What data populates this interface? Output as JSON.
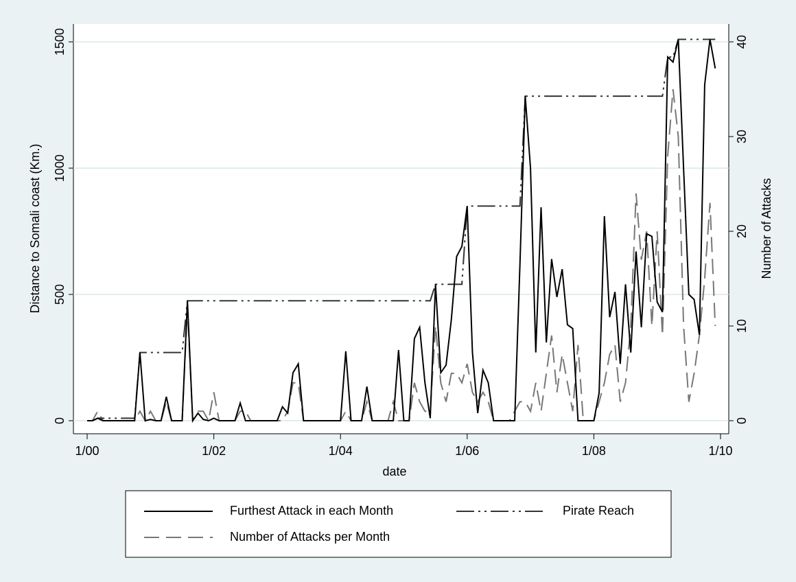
{
  "chart_data": {
    "type": "line",
    "xlabel": "date",
    "ylabel": "Distance to Somali coast (Km.)",
    "y2label": "Number of Attacks",
    "x": [
      "1/00",
      "2/00",
      "3/00",
      "4/00",
      "5/00",
      "6/00",
      "7/00",
      "8/00",
      "9/00",
      "10/00",
      "11/00",
      "12/00",
      "1/01",
      "2/01",
      "3/01",
      "4/01",
      "5/01",
      "6/01",
      "7/01",
      "8/01",
      "9/01",
      "10/01",
      "11/01",
      "12/01",
      "1/02",
      "2/02",
      "3/02",
      "4/02",
      "5/02",
      "6/02",
      "7/02",
      "8/02",
      "9/02",
      "10/02",
      "11/02",
      "12/02",
      "1/03",
      "2/03",
      "3/03",
      "4/03",
      "5/03",
      "6/03",
      "7/03",
      "8/03",
      "9/03",
      "10/03",
      "11/03",
      "12/03",
      "1/04",
      "2/04",
      "3/04",
      "4/04",
      "5/04",
      "6/04",
      "7/04",
      "8/04",
      "9/04",
      "10/04",
      "11/04",
      "12/04",
      "1/05",
      "2/05",
      "3/05",
      "4/05",
      "5/05",
      "6/05",
      "7/05",
      "8/05",
      "9/05",
      "10/05",
      "11/05",
      "12/05",
      "1/06",
      "2/06",
      "3/06",
      "4/06",
      "5/06",
      "6/06",
      "7/06",
      "8/06",
      "9/06",
      "10/06",
      "11/06",
      "12/06",
      "1/07",
      "2/07",
      "3/07",
      "4/07",
      "5/07",
      "6/07",
      "7/07",
      "8/07",
      "9/07",
      "10/07",
      "11/07",
      "12/07",
      "1/08",
      "2/08",
      "3/08",
      "4/08",
      "5/08",
      "6/08",
      "7/08",
      "8/08",
      "9/08",
      "10/08",
      "11/08",
      "12/08",
      "1/09",
      "2/09",
      "3/09",
      "4/09",
      "5/09",
      "6/09",
      "7/09",
      "8/09",
      "9/09",
      "10/09",
      "11/09",
      "12/09"
    ],
    "series": [
      {
        "name": "Furthest Attack in each Month",
        "color": "#000000",
        "linestyle": "solid",
        "values": [
          0,
          0,
          10,
          0,
          0,
          0,
          0,
          0,
          0,
          0,
          270,
          0,
          5,
          0,
          0,
          95,
          0,
          0,
          0,
          475,
          0,
          30,
          5,
          0,
          10,
          0,
          0,
          0,
          0,
          70,
          0,
          0,
          0,
          0,
          0,
          0,
          0,
          55,
          30,
          190,
          225,
          0,
          0,
          0,
          0,
          0,
          0,
          0,
          0,
          275,
          0,
          0,
          0,
          135,
          0,
          0,
          0,
          0,
          0,
          280,
          0,
          0,
          325,
          370,
          150,
          10,
          540,
          190,
          220,
          400,
          650,
          690,
          850,
          270,
          30,
          200,
          150,
          0,
          0,
          0,
          0,
          0,
          620,
          1285,
          1000,
          270,
          845,
          310,
          640,
          490,
          600,
          380,
          365,
          0,
          0,
          0,
          0,
          110,
          810,
          410,
          510,
          225,
          540,
          270,
          670,
          370,
          740,
          730,
          470,
          430,
          1440,
          1420,
          1510,
          1000,
          500,
          480,
          340,
          1330,
          1510,
          1395
        ]
      },
      {
        "name": "Pirate Reach",
        "color": "#333333",
        "linestyle": "dashdot",
        "values": [
          0,
          0,
          10,
          10,
          10,
          10,
          10,
          10,
          10,
          10,
          270,
          270,
          270,
          270,
          270,
          270,
          270,
          270,
          270,
          475,
          475,
          475,
          475,
          475,
          475,
          475,
          475,
          475,
          475,
          475,
          475,
          475,
          475,
          475,
          475,
          475,
          475,
          475,
          475,
          475,
          475,
          475,
          475,
          475,
          475,
          475,
          475,
          475,
          475,
          475,
          475,
          475,
          475,
          475,
          475,
          475,
          475,
          475,
          475,
          475,
          475,
          475,
          475,
          475,
          475,
          475,
          540,
          540,
          540,
          540,
          540,
          540,
          850,
          850,
          850,
          850,
          850,
          850,
          850,
          850,
          850,
          850,
          850,
          1285,
          1285,
          1285,
          1285,
          1285,
          1285,
          1285,
          1285,
          1285,
          1285,
          1285,
          1285,
          1285,
          1285,
          1285,
          1285,
          1285,
          1285,
          1285,
          1285,
          1285,
          1285,
          1285,
          1285,
          1285,
          1285,
          1285,
          1440,
          1440,
          1510,
          1510,
          1510,
          1510,
          1510,
          1510,
          1510,
          1510
        ]
      },
      {
        "name": "Number of Attacks per Month",
        "color": "#777777",
        "linestyle": "dashed",
        "axis": "y2",
        "values": [
          0,
          0,
          1,
          0,
          0,
          0,
          0,
          0,
          0,
          0,
          1,
          0,
          1,
          0,
          0,
          2,
          0,
          0,
          0,
          12,
          0,
          1,
          1,
          0,
          3,
          0,
          0,
          0,
          0,
          1,
          1,
          0,
          0,
          0,
          0,
          0,
          0,
          0,
          1,
          4,
          4,
          0,
          0,
          0,
          0,
          0,
          0,
          0,
          0,
          1,
          0,
          0,
          0,
          2,
          0,
          0,
          0,
          0,
          2,
          0,
          0,
          0,
          4,
          2,
          1,
          1,
          10,
          4,
          2,
          5,
          5,
          4,
          6,
          3,
          2,
          3,
          2,
          0,
          0,
          0,
          0,
          1,
          2,
          2,
          1,
          4,
          1,
          5,
          9,
          3,
          7,
          4,
          1,
          8,
          0,
          0,
          0,
          2,
          4,
          7,
          8,
          2,
          4,
          10,
          24,
          17,
          20,
          10,
          20,
          9,
          28,
          35,
          30,
          10,
          2,
          5,
          9,
          15,
          23,
          10
        ]
      }
    ],
    "xlim": [
      "1/00",
      "1/10"
    ],
    "xticks": [
      "1/00",
      "1/02",
      "1/04",
      "1/06",
      "1/08",
      "1/10"
    ],
    "ylim": [
      0,
      1500
    ],
    "yticks": [
      0,
      500,
      1000,
      1500
    ],
    "y2lim": [
      0,
      40
    ],
    "y2ticks": [
      0,
      10,
      20,
      30,
      40
    ],
    "grid": true
  }
}
